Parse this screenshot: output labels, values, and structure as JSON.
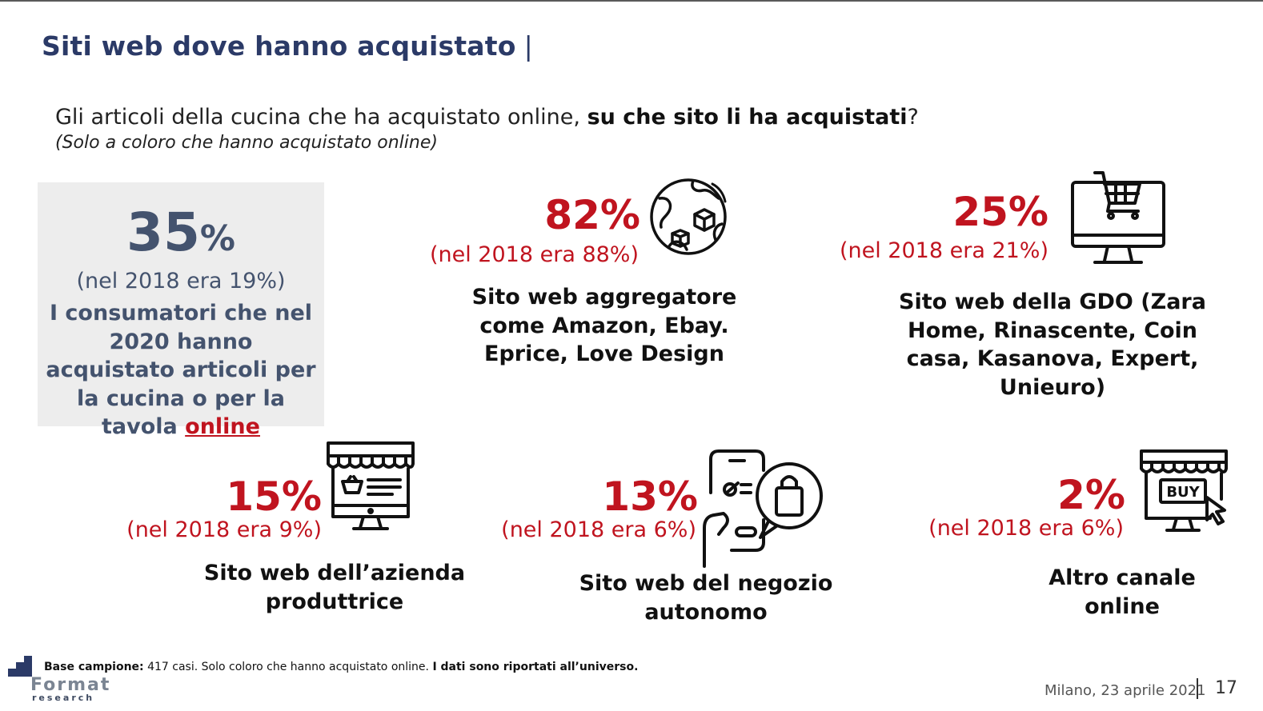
{
  "header": {
    "title": "Siti web dove hanno acquistato",
    "title_separator": "|"
  },
  "question": {
    "text_plain": "Gli articoli della cucina che ha acquistato online, ",
    "text_bold": "su che sito li ha acquistati",
    "text_end": "?",
    "note": "(Solo a coloro che hanno acquistato online)"
  },
  "highlight": {
    "value": "35",
    "unit": "%",
    "previous": "(nel 2018 era 19%)",
    "description_prefix": "I consumatori che nel 2020 hanno acquistato articoli per la cucina o per la tavola ",
    "description_link": "online"
  },
  "items": [
    {
      "value": "82%",
      "previous": "(nel 2018 era 88%)",
      "label": "Sito web aggregatore come Amazon, Ebay. Eprice, Love Design",
      "icon": "globe-box-icon"
    },
    {
      "value": "25%",
      "previous": "(nel 2018 era 21%)",
      "label": "Sito web della GDO (Zara Home, Rinascente, Coin casa, Kasanova, Expert, Unieuro)",
      "icon": "monitor-cart-icon"
    },
    {
      "value": "15%",
      "previous": "(nel 2018 era 9%)",
      "label": "Sito web dell’azienda produttrice",
      "icon": "online-store-icon"
    },
    {
      "value": "13%",
      "previous": "(nel 2018 era 6%)",
      "label": "Sito web del negozio autonomo",
      "icon": "phone-shopping-bag-icon"
    },
    {
      "value": "2%",
      "previous": "(nel 2018 era 6%)",
      "label": "Altro canale online",
      "icon": "buy-store-icon",
      "icon_text": "BUY"
    }
  ],
  "footer": {
    "base_bold": "Base campione:",
    "base_text": " 417 casi. Solo coloro che hanno acquistato online. ",
    "base_bold2": "I dati sono riportati all’universo.",
    "date": "Milano, 23 aprile 2021",
    "page": "17",
    "logo_name": "Format",
    "logo_sub": "research"
  },
  "colors": {
    "accent_red": "#c0141f",
    "title_navy": "#2b3a67",
    "highlight_slate": "#44536e",
    "box_grey": "#ededed"
  }
}
